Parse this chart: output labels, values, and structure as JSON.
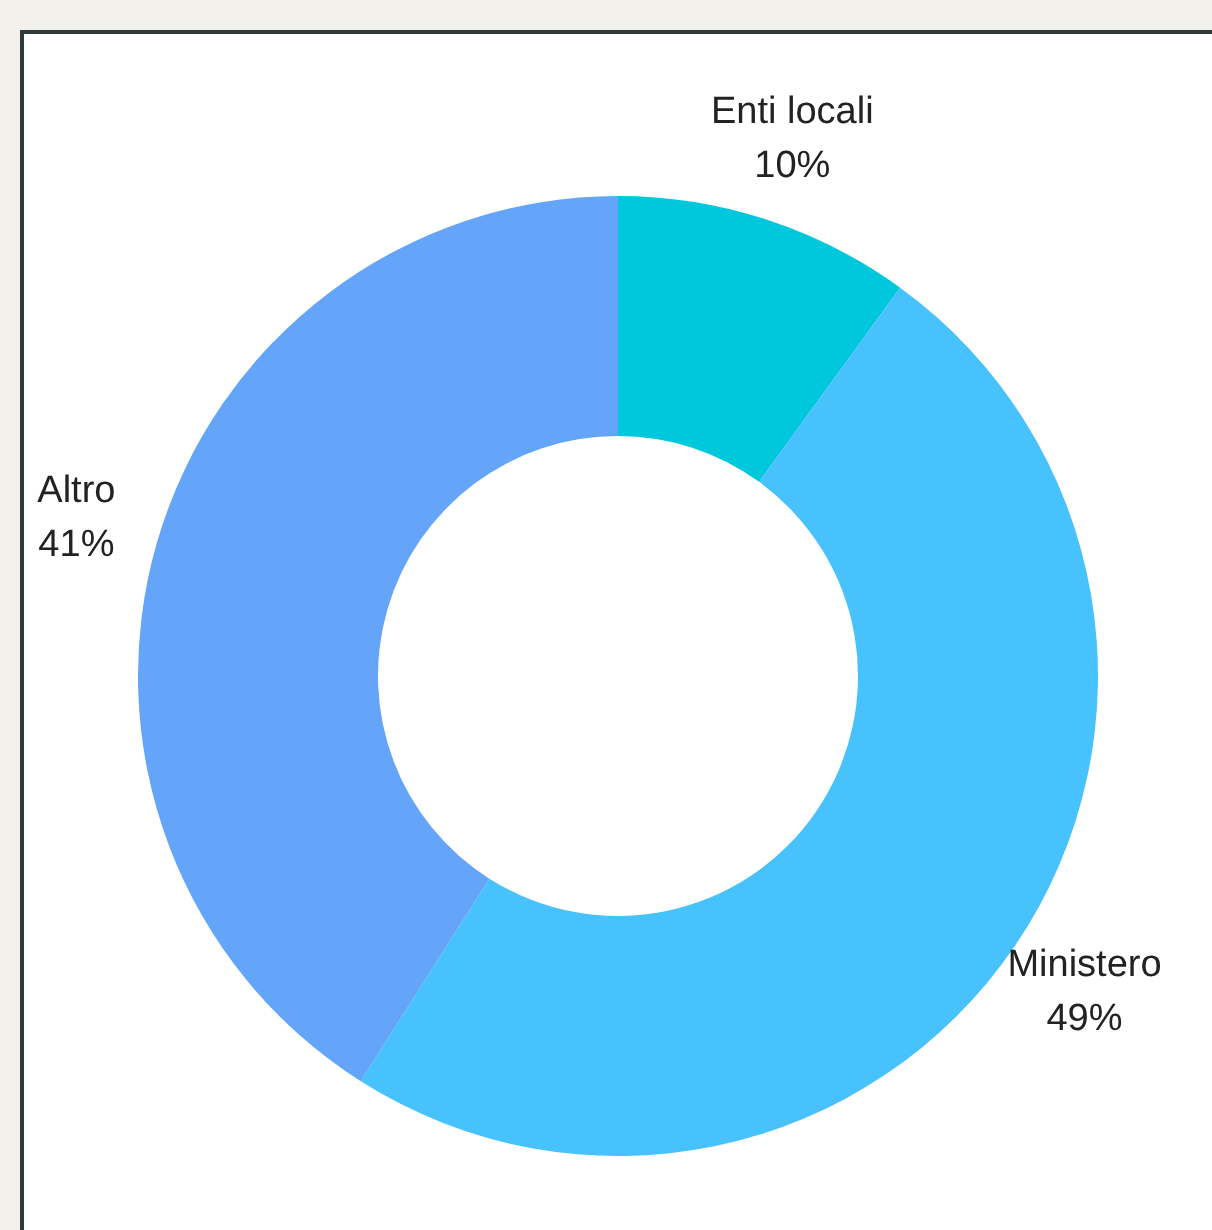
{
  "chart_data": {
    "type": "donut",
    "categories": [
      "Enti locali",
      "Ministero",
      "Altro"
    ],
    "values": [
      10,
      49,
      41
    ],
    "colors": [
      "#00c8dc",
      "#47c2fd",
      "#64a5f9"
    ],
    "value_labels": [
      "10%",
      "49%",
      "41%"
    ]
  }
}
